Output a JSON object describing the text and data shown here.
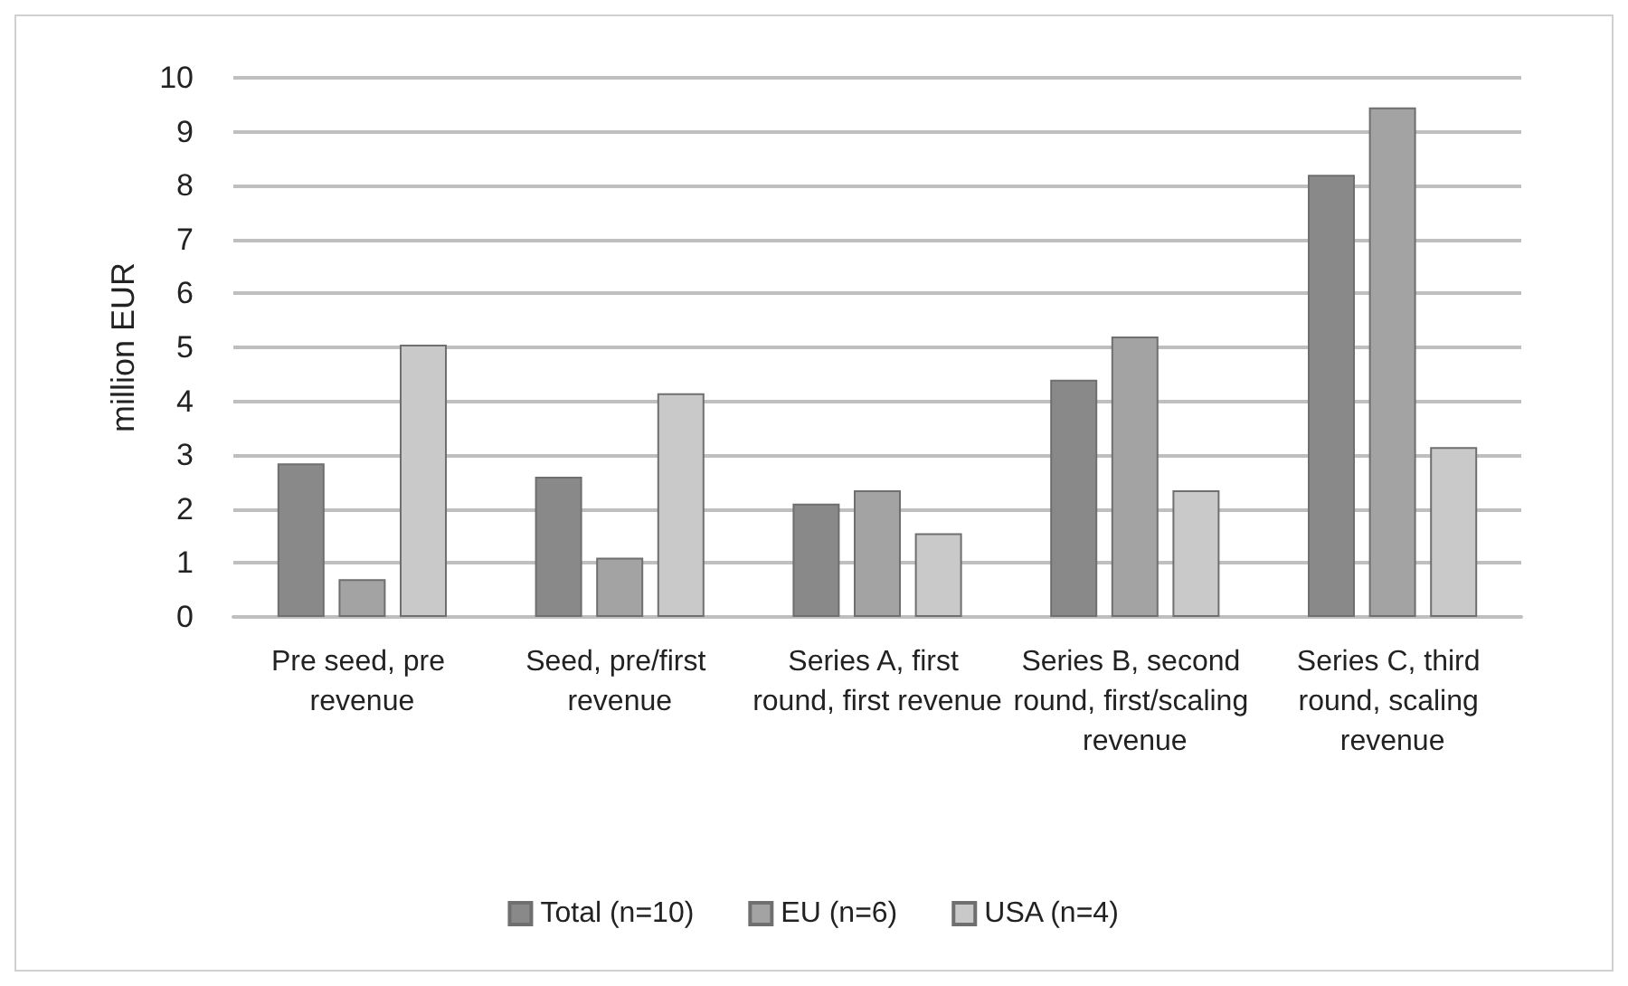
{
  "chart_data": {
    "type": "bar",
    "ylabel": "million EUR",
    "categories": [
      "Pre seed, pre revenue",
      "Seed, pre/first revenue",
      "Series A, first round, first revenue",
      "Series B, second round, first/scaling revenue",
      "Series C, third round, scaling revenue"
    ],
    "series": [
      {
        "name": "Total (n=10)",
        "color": "#898989",
        "values": [
          2.85,
          2.6,
          2.1,
          4.4,
          8.2
        ]
      },
      {
        "name": "EU (n=6)",
        "color": "#a3a3a3",
        "values": [
          0.7,
          1.1,
          2.35,
          5.2,
          9.45
        ]
      },
      {
        "name": "USA (n=4)",
        "color": "#c9c9c9",
        "values": [
          5.05,
          4.15,
          1.55,
          2.35,
          3.15
        ]
      }
    ],
    "ylim": [
      0,
      10
    ],
    "yticks": [
      0,
      1,
      2,
      3,
      4,
      5,
      6,
      7,
      8,
      9,
      10
    ],
    "grid": "y",
    "legend": "bottom"
  }
}
